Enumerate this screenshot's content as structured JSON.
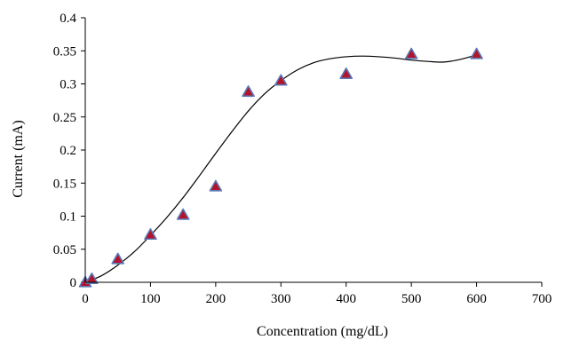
{
  "chart_data": {
    "type": "scatter",
    "xlabel": "Concentration (mg/dL)",
    "ylabel": "Current (mA)",
    "xlim": [
      0,
      700
    ],
    "ylim": [
      0,
      0.4
    ],
    "x_ticks": [
      0,
      100,
      200,
      300,
      400,
      500,
      600,
      700
    ],
    "y_ticks": [
      0,
      0.05,
      0.1,
      0.15,
      0.2,
      0.25,
      0.3,
      0.35,
      0.4
    ],
    "x_tick_labels": [
      "0",
      "100",
      "200",
      "300",
      "400",
      "500",
      "600",
      "700"
    ],
    "y_tick_labels": [
      "0",
      "0.05",
      "0.1",
      "0.15",
      "0.2",
      "0.25",
      "0.3",
      "0.35",
      "0.4"
    ],
    "grid": false,
    "legend": "none",
    "marker": "triangle",
    "marker_fill": "#b3132b",
    "marker_edge": "#5b79b5",
    "series": [
      {
        "x": [
          0,
          10,
          50,
          100,
          150,
          200,
          250,
          300,
          400,
          500,
          600
        ],
        "y": [
          0.0,
          0.005,
          0.035,
          0.072,
          0.102,
          0.145,
          0.288,
          0.305,
          0.315,
          0.345,
          0.345
        ]
      }
    ],
    "fit_curve": {
      "type": "polynomial trendline",
      "x": [
        0,
        25,
        50,
        75,
        100,
        125,
        150,
        175,
        200,
        225,
        250,
        275,
        300,
        325,
        350,
        375,
        400,
        425,
        450,
        475,
        500,
        525,
        550,
        575,
        600
      ],
      "y": [
        0.0,
        0.01,
        0.026,
        0.046,
        0.071,
        0.098,
        0.128,
        0.161,
        0.195,
        0.228,
        0.259,
        0.285,
        0.305,
        0.321,
        0.332,
        0.338,
        0.341,
        0.342,
        0.341,
        0.339,
        0.336,
        0.334,
        0.333,
        0.337,
        0.344
      ]
    }
  }
}
